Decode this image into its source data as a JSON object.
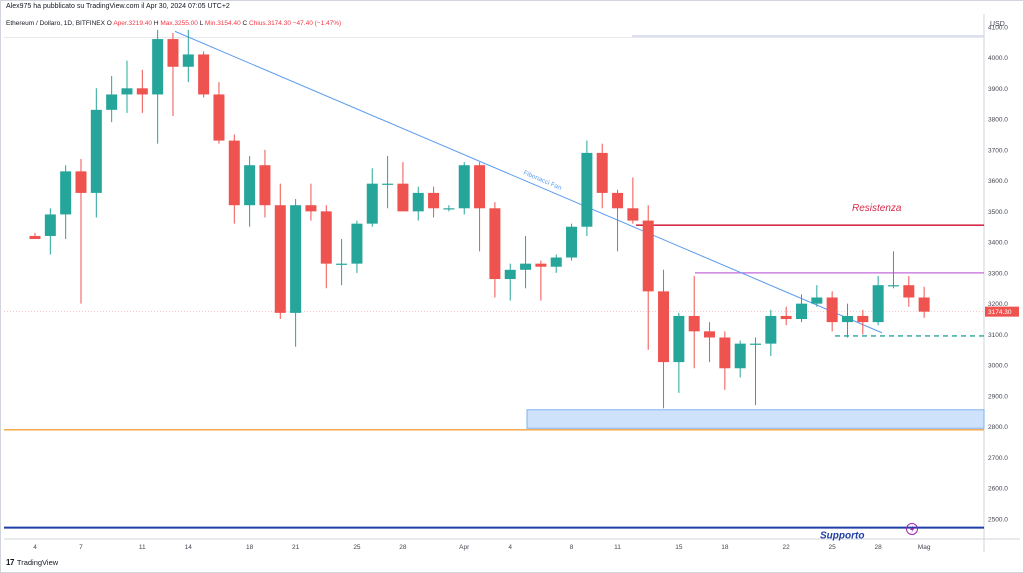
{
  "header": {
    "published": "Alex975 ha pubblicato su TradingView.com il Apr 30, 2024 07:05 UTC+2",
    "symbol": "Ethereum / Dollaro, 1D, BITFINEX",
    "open_label": "O",
    "open_text": "Aper.3219.40",
    "high_label": "H",
    "high_text": "Max.3255.00",
    "low_label": "L",
    "low_text": "Min.3154.40",
    "close_label": "C",
    "close_text": "Chius.3174.30",
    "change_text": "−47.40 (−1.47%)"
  },
  "footer": {
    "brand": "TradingView",
    "logo": "17"
  },
  "chart_data": {
    "type": "candlestick",
    "currency_label": "USD",
    "y_ticks": [
      2500,
      2600,
      2700,
      2800,
      2900,
      3000,
      3100,
      3200,
      3300,
      3400,
      3500,
      3600,
      3700,
      3800,
      3900,
      4000,
      4100
    ],
    "ylim": [
      2435,
      4135
    ],
    "x_ticks": [
      {
        "label": "4",
        "day": 0
      },
      {
        "label": "7",
        "day": 3
      },
      {
        "label": "11",
        "day": 7
      },
      {
        "label": "14",
        "day": 10
      },
      {
        "label": "18",
        "day": 14
      },
      {
        "label": "21",
        "day": 17
      },
      {
        "label": "25",
        "day": 21
      },
      {
        "label": "28",
        "day": 24
      },
      {
        "label": "Apr",
        "day": 28
      },
      {
        "label": "4",
        "day": 31
      },
      {
        "label": "8",
        "day": 35
      },
      {
        "label": "11",
        "day": 38
      },
      {
        "label": "15",
        "day": 42
      },
      {
        "label": "18",
        "day": 45
      },
      {
        "label": "22",
        "day": 49
      },
      {
        "label": "25",
        "day": 52
      },
      {
        "label": "28",
        "day": 55
      },
      {
        "label": "Mag",
        "day": 58
      }
    ],
    "candles": [
      {
        "o": 3420,
        "h": 3430,
        "l": 3410,
        "c": 3410
      },
      {
        "o": 3420,
        "h": 3510,
        "l": 3360,
        "c": 3490
      },
      {
        "o": 3490,
        "h": 3650,
        "l": 3410,
        "c": 3630
      },
      {
        "o": 3630,
        "h": 3670,
        "l": 3200,
        "c": 3560
      },
      {
        "o": 3560,
        "h": 3900,
        "l": 3480,
        "c": 3830
      },
      {
        "o": 3830,
        "h": 3940,
        "l": 3790,
        "c": 3880
      },
      {
        "o": 3880,
        "h": 3990,
        "l": 3820,
        "c": 3900
      },
      {
        "o": 3900,
        "h": 3960,
        "l": 3820,
        "c": 3880
      },
      {
        "o": 3880,
        "h": 4090,
        "l": 3720,
        "c": 4060
      },
      {
        "o": 4060,
        "h": 4080,
        "l": 3810,
        "c": 3970
      },
      {
        "o": 3970,
        "h": 4090,
        "l": 3920,
        "c": 4010
      },
      {
        "o": 4010,
        "h": 4020,
        "l": 3870,
        "c": 3880
      },
      {
        "o": 3880,
        "h": 3920,
        "l": 3720,
        "c": 3730
      },
      {
        "o": 3730,
        "h": 3750,
        "l": 3460,
        "c": 3520
      },
      {
        "o": 3520,
        "h": 3680,
        "l": 3450,
        "c": 3650
      },
      {
        "o": 3650,
        "h": 3700,
        "l": 3480,
        "c": 3520
      },
      {
        "o": 3520,
        "h": 3590,
        "l": 3150,
        "c": 3170
      },
      {
        "o": 3170,
        "h": 3540,
        "l": 3060,
        "c": 3520
      },
      {
        "o": 3520,
        "h": 3590,
        "l": 3470,
        "c": 3500
      },
      {
        "o": 3500,
        "h": 3520,
        "l": 3250,
        "c": 3330
      },
      {
        "o": 3330,
        "h": 3410,
        "l": 3260,
        "c": 3330
      },
      {
        "o": 3330,
        "h": 3470,
        "l": 3300,
        "c": 3460
      },
      {
        "o": 3460,
        "h": 3640,
        "l": 3450,
        "c": 3590
      },
      {
        "o": 3590,
        "h": 3680,
        "l": 3510,
        "c": 3590
      },
      {
        "o": 3590,
        "h": 3660,
        "l": 3500,
        "c": 3500
      },
      {
        "o": 3500,
        "h": 3580,
        "l": 3470,
        "c": 3560
      },
      {
        "o": 3560,
        "h": 3580,
        "l": 3480,
        "c": 3510
      },
      {
        "o": 3510,
        "h": 3520,
        "l": 3500,
        "c": 3510
      },
      {
        "o": 3510,
        "h": 3660,
        "l": 3490,
        "c": 3650
      },
      {
        "o": 3650,
        "h": 3660,
        "l": 3370,
        "c": 3510
      },
      {
        "o": 3510,
        "h": 3530,
        "l": 3220,
        "c": 3280
      },
      {
        "o": 3280,
        "h": 3330,
        "l": 3210,
        "c": 3310
      },
      {
        "o": 3310,
        "h": 3420,
        "l": 3250,
        "c": 3330
      },
      {
        "o": 3330,
        "h": 3340,
        "l": 3210,
        "c": 3320
      },
      {
        "o": 3320,
        "h": 3360,
        "l": 3300,
        "c": 3350
      },
      {
        "o": 3350,
        "h": 3460,
        "l": 3340,
        "c": 3450
      },
      {
        "o": 3450,
        "h": 3730,
        "l": 3420,
        "c": 3690
      },
      {
        "o": 3690,
        "h": 3720,
        "l": 3510,
        "c": 3560
      },
      {
        "o": 3560,
        "h": 3570,
        "l": 3370,
        "c": 3510
      },
      {
        "o": 3510,
        "h": 3610,
        "l": 3460,
        "c": 3470
      },
      {
        "o": 3470,
        "h": 3520,
        "l": 3050,
        "c": 3240
      },
      {
        "o": 3240,
        "h": 3310,
        "l": 2860,
        "c": 3010
      },
      {
        "o": 3010,
        "h": 3170,
        "l": 2910,
        "c": 3160
      },
      {
        "o": 3160,
        "h": 3290,
        "l": 2990,
        "c": 3110
      },
      {
        "o": 3110,
        "h": 3140,
        "l": 3010,
        "c": 3090
      },
      {
        "o": 3090,
        "h": 3110,
        "l": 2920,
        "c": 2990
      },
      {
        "o": 2990,
        "h": 3080,
        "l": 2960,
        "c": 3070
      },
      {
        "o": 3070,
        "h": 3090,
        "l": 2870,
        "c": 3070
      },
      {
        "o": 3070,
        "h": 3180,
        "l": 3030,
        "c": 3160
      },
      {
        "o": 3160,
        "h": 3190,
        "l": 3130,
        "c": 3150
      },
      {
        "o": 3150,
        "h": 3230,
        "l": 3140,
        "c": 3200
      },
      {
        "o": 3200,
        "h": 3260,
        "l": 3190,
        "c": 3220
      },
      {
        "o": 3220,
        "h": 3240,
        "l": 3110,
        "c": 3140
      },
      {
        "o": 3140,
        "h": 3200,
        "l": 3090,
        "c": 3160
      },
      {
        "o": 3160,
        "h": 3180,
        "l": 3100,
        "c": 3140
      },
      {
        "o": 3140,
        "h": 3290,
        "l": 3130,
        "c": 3260
      },
      {
        "o": 3260,
        "h": 3370,
        "l": 3250,
        "c": 3260
      },
      {
        "o": 3260,
        "h": 3290,
        "l": 3190,
        "c": 3220
      },
      {
        "o": 3220,
        "h": 3255,
        "l": 3154,
        "c": 3174
      }
    ],
    "last_price_label": "3174.30",
    "annotations": {
      "resistance": {
        "label": "Resistenza",
        "price": 3455
      },
      "support": {
        "label": "Supporto",
        "price": 2472
      },
      "support_zone": {
        "top": 2855,
        "bottom": 2795
      },
      "orange_line": 2790,
      "fan_label": "Fibonacci Fan",
      "fan_start": {
        "day": 9,
        "price": 4085
      },
      "fan_end": {
        "day": 55,
        "price": 3105
      },
      "upper_line": 4070,
      "purple_line": 3300,
      "teal_dashed": 3095
    },
    "colors": {
      "up": "#26a69a",
      "down": "#ef5350",
      "resistance": "#d62d4a",
      "support": "#1f3fa8",
      "orange": "#f4a33b",
      "fan": "#5b9bf0",
      "purple": "#c46adb",
      "teal": "#26a69a",
      "zone_fill": "#cfe2fb",
      "zone_border": "#7fb1ee",
      "axis_text": "#434651",
      "grid_line": "#e0e3eb"
    },
    "icons": {
      "flash": "lightning-icon"
    }
  }
}
